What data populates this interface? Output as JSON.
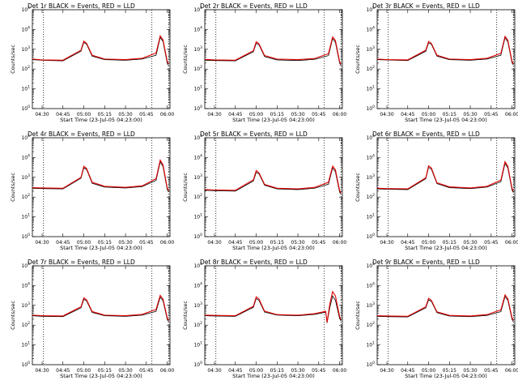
{
  "figure": {
    "xlabel": "Start Time (23-Jul-05 04:23:00)",
    "ylabel": "Counts/sec",
    "x_tick_labels": [
      "04:30",
      "04:45",
      "05:00",
      "05:15",
      "05:30",
      "05:45",
      "06:00"
    ],
    "y_tick_labels": [
      "10^0",
      "10^1",
      "10^2",
      "10^3",
      "10^4",
      "10^5"
    ],
    "series_colors": {
      "black": "#000000",
      "red": "#e00000"
    }
  },
  "chart_data": [
    {
      "type": "line",
      "title": "Det 1r BLACK = Events, RED = LLD",
      "x": [
        "04:23",
        "04:30",
        "04:45",
        "04:58",
        "05:00",
        "05:02",
        "05:06",
        "05:15",
        "05:30",
        "05:42",
        "05:52",
        "05:55",
        "05:57",
        "06:00",
        "06:01"
      ],
      "ylog": true,
      "ylim": [
        1,
        100000
      ],
      "xlim": [
        "04:23",
        "06:02"
      ],
      "vlines": [
        "04:31",
        "05:49",
        "06:01"
      ],
      "series": [
        {
          "name": "BLACK = Events",
          "color": "#000000",
          "values": [
            300,
            280,
            260,
            800,
            2200,
            1800,
            450,
            300,
            280,
            320,
            500,
            4000,
            2500,
            200,
            150
          ]
        },
        {
          "name": "RED = LLD",
          "color": "#e00000",
          "values": [
            320,
            290,
            280,
            900,
            2600,
            2000,
            500,
            320,
            300,
            350,
            650,
            4800,
            3000,
            250,
            180
          ]
        }
      ]
    },
    {
      "type": "line",
      "title": "Det 2r BLACK = Events, RED = LLD",
      "x": [
        "04:23",
        "04:30",
        "04:45",
        "04:58",
        "05:00",
        "05:02",
        "05:06",
        "05:15",
        "05:30",
        "05:42",
        "05:52",
        "05:55",
        "05:57",
        "06:00",
        "06:01"
      ],
      "ylog": true,
      "ylim": [
        1,
        100000
      ],
      "xlim": [
        "04:23",
        "06:02"
      ],
      "vlines": [
        "04:31",
        "05:49",
        "06:01"
      ],
      "series": [
        {
          "name": "BLACK = Events",
          "color": "#000000",
          "values": [
            280,
            270,
            260,
            750,
            2000,
            1700,
            430,
            290,
            270,
            310,
            480,
            3500,
            2200,
            200,
            150
          ]
        },
        {
          "name": "RED = LLD",
          "color": "#e00000",
          "values": [
            310,
            290,
            280,
            850,
            2400,
            1900,
            480,
            320,
            300,
            340,
            600,
            4200,
            2800,
            240,
            170
          ]
        }
      ]
    },
    {
      "type": "line",
      "title": "Det 3r BLACK = Events, RED = LLD",
      "x": [
        "04:23",
        "04:30",
        "04:45",
        "04:58",
        "05:00",
        "05:02",
        "05:06",
        "05:15",
        "05:30",
        "05:42",
        "05:52",
        "05:55",
        "05:57",
        "06:00",
        "06:01"
      ],
      "ylog": true,
      "ylim": [
        1,
        100000
      ],
      "xlim": [
        "04:23",
        "06:02"
      ],
      "vlines": [
        "04:31",
        "05:49",
        "06:01"
      ],
      "series": [
        {
          "name": "BLACK = Events",
          "color": "#000000",
          "values": [
            300,
            290,
            270,
            800,
            2100,
            1800,
            450,
            300,
            280,
            320,
            500,
            3800,
            2400,
            210,
            160
          ]
        },
        {
          "name": "RED = LLD",
          "color": "#e00000",
          "values": [
            320,
            300,
            290,
            900,
            2500,
            2000,
            500,
            320,
            300,
            350,
            620,
            4500,
            2900,
            250,
            180
          ]
        }
      ]
    },
    {
      "type": "line",
      "title": "Det 4r BLACK = Events, RED = LLD",
      "x": [
        "04:23",
        "04:30",
        "04:45",
        "04:58",
        "05:00",
        "05:02",
        "05:06",
        "05:15",
        "05:30",
        "05:42",
        "05:52",
        "05:55",
        "05:57",
        "06:00",
        "06:01"
      ],
      "ylog": true,
      "ylim": [
        1,
        100000
      ],
      "xlim": [
        "04:23",
        "06:02"
      ],
      "vlines": [
        "04:31",
        "05:49",
        "06:01"
      ],
      "series": [
        {
          "name": "BLACK = Events",
          "color": "#000000",
          "values": [
            280,
            270,
            260,
            900,
            3000,
            2500,
            500,
            320,
            290,
            340,
            700,
            6000,
            3500,
            250,
            180
          ]
        },
        {
          "name": "RED = LLD",
          "color": "#e00000",
          "values": [
            300,
            290,
            280,
            1000,
            3600,
            2800,
            560,
            350,
            310,
            370,
            850,
            7500,
            4300,
            300,
            210
          ]
        }
      ]
    },
    {
      "type": "line",
      "title": "Det 5r BLACK = Events, RED = LLD",
      "x": [
        "04:23",
        "04:30",
        "04:45",
        "04:58",
        "05:00",
        "05:02",
        "05:06",
        "05:15",
        "05:30",
        "05:42",
        "05:52",
        "05:55",
        "05:57",
        "06:00",
        "06:01"
      ],
      "ylog": true,
      "ylim": [
        1,
        100000
      ],
      "xlim": [
        "04:23",
        "06:02"
      ],
      "vlines": [
        "04:31",
        "05:49",
        "06:01"
      ],
      "series": [
        {
          "name": "BLACK = Events",
          "color": "#000000",
          "values": [
            220,
            210,
            200,
            650,
            1800,
            1500,
            400,
            260,
            240,
            280,
            450,
            3000,
            1900,
            180,
            140
          ]
        },
        {
          "name": "RED = LLD",
          "color": "#e00000",
          "values": [
            240,
            230,
            220,
            750,
            2200,
            1700,
            440,
            280,
            260,
            310,
            560,
            3700,
            2400,
            220,
            160
          ]
        }
      ]
    },
    {
      "type": "line",
      "title": "Det 6r BLACK = Events, RED = LLD",
      "x": [
        "04:23",
        "04:30",
        "04:45",
        "04:58",
        "05:00",
        "05:02",
        "05:06",
        "05:15",
        "05:30",
        "05:42",
        "05:52",
        "05:55",
        "05:57",
        "06:00",
        "06:01"
      ],
      "ylog": true,
      "ylim": [
        1,
        100000
      ],
      "xlim": [
        "04:23",
        "06:02"
      ],
      "vlines": [
        "04:31",
        "05:49",
        "06:01"
      ],
      "series": [
        {
          "name": "BLACK = Events",
          "color": "#000000",
          "values": [
            260,
            250,
            240,
            850,
            3200,
            2600,
            480,
            300,
            270,
            320,
            600,
            5000,
            3000,
            230,
            170
          ]
        },
        {
          "name": "RED = LLD",
          "color": "#e00000",
          "values": [
            280,
            270,
            260,
            950,
            3800,
            3000,
            530,
            330,
            290,
            350,
            720,
            6200,
            3700,
            280,
            200
          ]
        }
      ]
    },
    {
      "type": "line",
      "title": "Det 7r BLACK = Events, RED = LLD",
      "x": [
        "04:23",
        "04:30",
        "04:45",
        "04:58",
        "05:00",
        "05:02",
        "05:06",
        "05:15",
        "05:30",
        "05:42",
        "05:52",
        "05:55",
        "05:57",
        "06:00",
        "06:01"
      ],
      "ylog": true,
      "ylim": [
        1,
        100000
      ],
      "xlim": [
        "04:23",
        "06:02"
      ],
      "vlines": [
        "04:31",
        "05:49",
        "06:01"
      ],
      "series": [
        {
          "name": "BLACK = Events",
          "color": "#000000",
          "values": [
            300,
            280,
            270,
            750,
            2000,
            1700,
            440,
            300,
            280,
            320,
            500,
            2600,
            1700,
            200,
            150
          ]
        },
        {
          "name": "RED = LLD",
          "color": "#e00000",
          "values": [
            320,
            300,
            290,
            850,
            2400,
            1900,
            490,
            320,
            300,
            350,
            620,
            3200,
            2100,
            240,
            170
          ]
        }
      ]
    },
    {
      "type": "line",
      "title": "Det 8r BLACK = Events, RED = LLD",
      "x": [
        "04:23",
        "04:30",
        "04:45",
        "04:58",
        "05:00",
        "05:02",
        "05:06",
        "05:15",
        "05:30",
        "05:42",
        "05:50",
        "05:51",
        "05:53",
        "05:55",
        "05:57",
        "06:00",
        "06:01"
      ],
      "ylog": true,
      "ylim": [
        1,
        100000
      ],
      "xlim": [
        "04:23",
        "06:02"
      ],
      "vlines": [
        "04:31",
        "05:49",
        "06:01"
      ],
      "series": [
        {
          "name": "BLACK = Events",
          "color": "#000000",
          "values": [
            300,
            290,
            280,
            800,
            2200,
            1800,
            460,
            320,
            300,
            350,
            450,
            130,
            800,
            3000,
            1800,
            220,
            160
          ]
        },
        {
          "name": "RED = LLD",
          "color": "#e00000",
          "values": [
            320,
            310,
            300,
            900,
            2700,
            2100,
            510,
            340,
            320,
            380,
            500,
            140,
            1200,
            5000,
            3000,
            280,
            190
          ]
        }
      ]
    },
    {
      "type": "line",
      "title": "Det 9r BLACK = Events, RED = LLD",
      "x": [
        "04:23",
        "04:30",
        "04:45",
        "04:58",
        "05:00",
        "05:02",
        "05:06",
        "05:15",
        "05:30",
        "05:42",
        "05:52",
        "05:55",
        "05:57",
        "06:00",
        "06:01"
      ],
      "ylog": true,
      "ylim": [
        1,
        100000
      ],
      "xlim": [
        "04:23",
        "06:02"
      ],
      "vlines": [
        "04:31",
        "05:49",
        "06:01"
      ],
      "series": [
        {
          "name": "BLACK = Events",
          "color": "#000000",
          "values": [
            280,
            270,
            260,
            750,
            1900,
            1600,
            430,
            290,
            270,
            310,
            480,
            2800,
            1800,
            200,
            150
          ]
        },
        {
          "name": "RED = LLD",
          "color": "#e00000",
          "values": [
            300,
            290,
            280,
            850,
            2300,
            1800,
            470,
            310,
            290,
            340,
            590,
            3400,
            2200,
            240,
            170
          ]
        }
      ]
    }
  ]
}
